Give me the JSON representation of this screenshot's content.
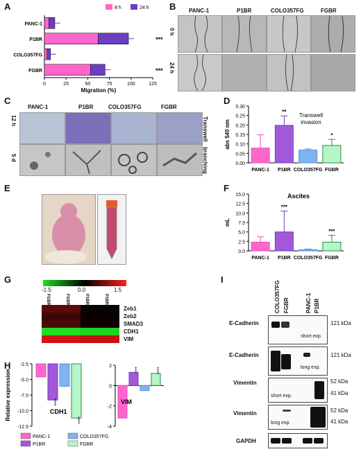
{
  "panels": {
    "A": "A",
    "B": "B",
    "C": "C",
    "D": "D",
    "E": "E",
    "F": "F",
    "G": "G",
    "H": "H",
    "I": "I"
  },
  "colors": {
    "pink": "#ff66cc",
    "purple": "#a259d9",
    "blue": "#5c8fe0",
    "lightblue": "#7eb4f0",
    "green": "#b5f5c8",
    "mid_purple": "#6a3fc2",
    "magenta": "#e64fbf"
  },
  "chart_a": {
    "type": "bar",
    "categories": [
      "PANC-1",
      "P1BR",
      "COLO357FG",
      "FGBR"
    ],
    "series": [
      {
        "name": "8 h",
        "values": [
          5,
          62,
          3,
          53
        ]
      },
      {
        "name": "24 h",
        "values": [
          12,
          97,
          7,
          70
        ]
      }
    ],
    "xlabel": "Migration (%)",
    "xticks": [
      "0",
      "25",
      "50",
      "75",
      "100",
      "125"
    ],
    "xlim": [
      0,
      125
    ],
    "significance": [
      "",
      "***",
      "",
      "***"
    ]
  },
  "panel_b": {
    "cols": [
      "PANC-1",
      "P1BR",
      "COLO357FG",
      "FGBR"
    ],
    "rows": [
      "0 h",
      "24 h"
    ]
  },
  "panel_c": {
    "cols": [
      "PANC-1",
      "P1BR",
      "COLO357FG",
      "FGBR"
    ],
    "rows": [
      "12 h",
      "5 d"
    ],
    "side": [
      "Transwell",
      "branching"
    ]
  },
  "chart_d": {
    "type": "bar",
    "categories": [
      "PANC-1",
      "P1BR",
      "COLO357FG",
      "FGBR"
    ],
    "values": [
      0.078,
      0.198,
      0.068,
      0.092
    ],
    "errors": [
      0.07,
      0.05,
      0.006,
      0.032
    ],
    "ylabel": "abs 540 nm",
    "yticks": [
      "0.00",
      "0.05",
      "0.10",
      "0.15",
      "0.20",
      "0.25",
      "0.30"
    ],
    "ylim": [
      0,
      0.3
    ],
    "annotation": "Transwell invasion",
    "significance": [
      "",
      "**",
      "",
      "*"
    ]
  },
  "chart_f": {
    "type": "bar",
    "title": "Ascites",
    "categories": [
      "PANC-1",
      "P1BR",
      "COLO357FG",
      "FGBR"
    ],
    "values": [
      2.3,
      5.0,
      0.3,
      2.3
    ],
    "errors": [
      1.4,
      5.5,
      0.2,
      1.8
    ],
    "ylabel": "mL",
    "yticks": [
      "0.0",
      "2.5",
      "5.0",
      "7.5",
      "10.0",
      "12.5",
      "15.0"
    ],
    "ylim": [
      0,
      15
    ],
    "significance": [
      "",
      "***",
      "",
      "***"
    ]
  },
  "heatmap_g": {
    "scale": [
      "-1.5",
      "0.0",
      "1.5"
    ],
    "cols": [
      "FGBR",
      "FGBR",
      "P1BR",
      "P1BR"
    ],
    "rows": [
      "Zeb1",
      "Zeb2",
      "SMAD3",
      "CDH1",
      "VIM"
    ]
  },
  "chart_h": {
    "type": "bar",
    "ylabel": "Relative expression",
    "yticks": [
      "-2.5",
      "-5.0",
      "-7.5",
      "-10.0",
      "-12.5"
    ],
    "groups": [
      "CDH1",
      "VIM"
    ],
    "cdh1": [
      -4.6,
      -8.3,
      -6.1,
      -11.2
    ],
    "vim": [
      -3.2,
      1.3,
      -0.5,
      1.2
    ],
    "legend": [
      "PANC-1",
      "COLO357FG",
      "P1BR",
      "FGBR"
    ],
    "vim_ticks": [
      "2",
      "0",
      "-2",
      "-4"
    ],
    "sig_cdh1": [
      "",
      "****",
      "",
      "****"
    ],
    "sig_vim": [
      "",
      "***",
      "",
      "****"
    ]
  },
  "blot_i": {
    "cols": [
      "COLO357FG",
      "FGBR",
      "PANC-1",
      "P1BR"
    ],
    "rows": [
      {
        "label": "E-Cadherin",
        "note": "short exp.",
        "kda": [
          "121 kDa"
        ]
      },
      {
        "label": "E-Cadherin",
        "note": "long exp.",
        "kda": [
          "121 kDa"
        ]
      },
      {
        "label": "Vimentin",
        "note": "short exp.",
        "kda": [
          "52 kDa",
          "41 kDa"
        ]
      },
      {
        "label": "Vimentin",
        "note": "long exp.",
        "kda": [
          "52 kDa",
          "41 kDa"
        ]
      },
      {
        "label": "GAPDH",
        "note": "",
        "kda": []
      }
    ]
  }
}
